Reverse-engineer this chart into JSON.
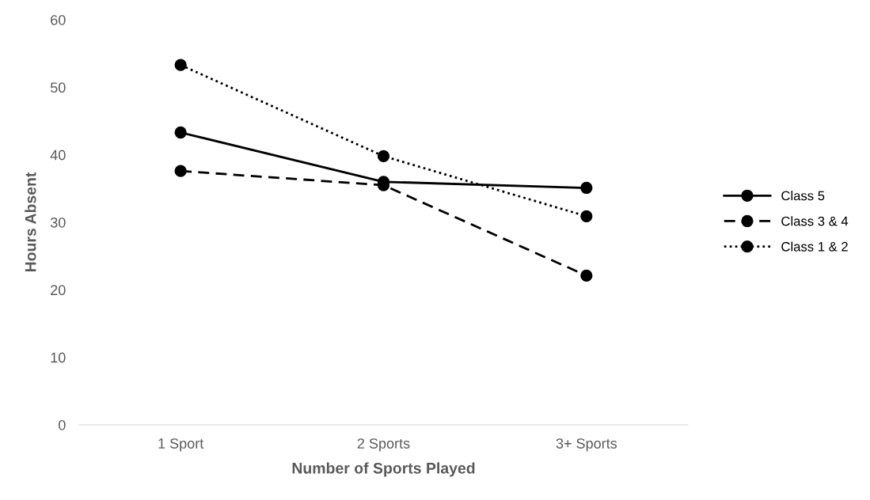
{
  "chart_data": {
    "type": "line",
    "xlabel": "Number of Sports Played",
    "ylabel": "Hours Absent",
    "categories": [
      "1 Sport",
      "2 Sports",
      "3+ Sports"
    ],
    "series": [
      {
        "name": "Class 5",
        "color": "#000000",
        "line_style": "solid",
        "values": [
          43.3,
          36.0,
          35.1
        ]
      },
      {
        "name": "Class 3 & 4",
        "color": "#000000",
        "line_style": "dashed",
        "values": [
          37.6,
          35.5,
          22.1
        ]
      },
      {
        "name": "Class 1 & 2",
        "color": "#000000",
        "line_style": "dotted",
        "values": [
          53.3,
          39.8,
          30.9
        ]
      }
    ],
    "marker": "circle",
    "ylim": [
      0,
      60
    ],
    "yticks": [
      0,
      10,
      20,
      30,
      40,
      50,
      60
    ],
    "grid": false,
    "legend": "right"
  }
}
